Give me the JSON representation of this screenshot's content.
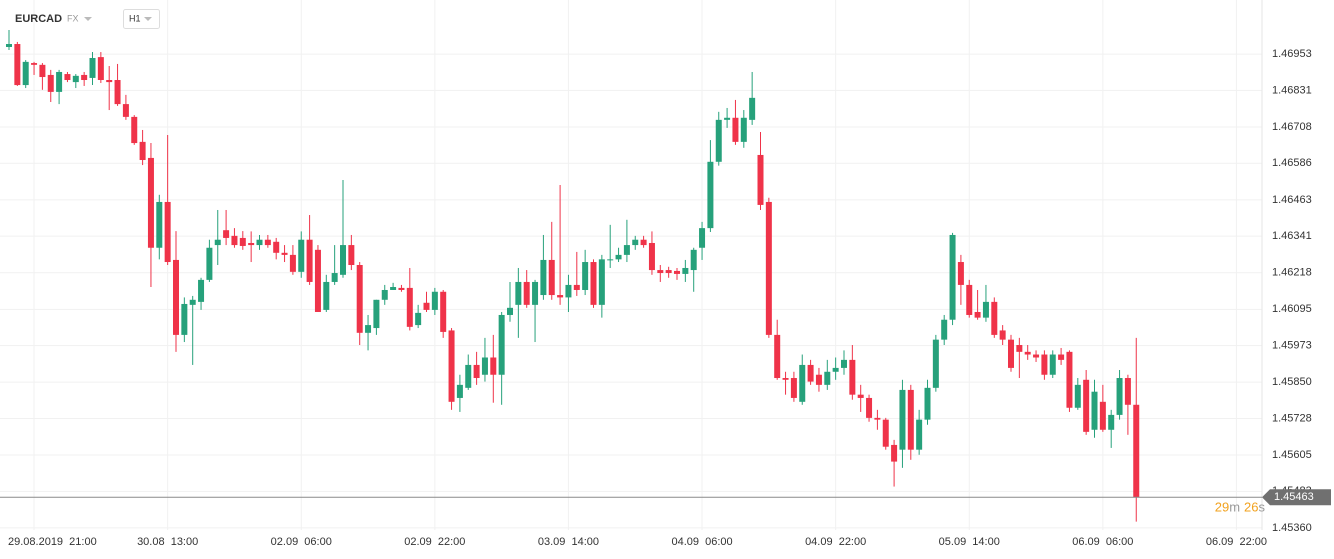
{
  "chart_data": {
    "type": "candlestick",
    "symbol": "EURCAD",
    "market": "FX",
    "timeframe": "H1",
    "up_color": "#26a17b",
    "down_color": "#ef3349",
    "grid": true,
    "categories": [
      null,
      null,
      null,
      "29.08.2019  21:00",
      null,
      null,
      null,
      null,
      null,
      null,
      null,
      null,
      null,
      null,
      null,
      null,
      null,
      null,
      null,
      "30.08  13:00",
      null,
      null,
      null,
      null,
      null,
      null,
      null,
      null,
      null,
      null,
      null,
      null,
      null,
      null,
      null,
      "02.09  06:00",
      null,
      null,
      null,
      null,
      null,
      null,
      null,
      null,
      null,
      null,
      null,
      null,
      null,
      null,
      null,
      "02.09  22:00",
      null,
      null,
      null,
      null,
      null,
      null,
      null,
      null,
      null,
      null,
      null,
      null,
      null,
      null,
      null,
      "03.09  14:00",
      null,
      null,
      null,
      null,
      null,
      null,
      null,
      null,
      null,
      null,
      null,
      null,
      null,
      null,
      null,
      "04.09  06:00",
      null,
      null,
      null,
      null,
      null,
      null,
      null,
      null,
      null,
      null,
      null,
      null,
      null,
      null,
      null,
      "04.09  22:00",
      null,
      null,
      null,
      null,
      null,
      null,
      null,
      null,
      null,
      null,
      null,
      null,
      null,
      null,
      null,
      "05.09  14:00",
      null,
      null,
      null,
      null,
      null,
      null,
      null,
      null,
      null,
      null,
      null,
      null,
      null,
      null,
      null,
      "06.09  06:00",
      null,
      null,
      null,
      null,
      null,
      null,
      null,
      null,
      null,
      null,
      null,
      null,
      null,
      null,
      null,
      "06.09  22:00"
    ],
    "open": [
      1.46977,
      1.46987,
      1.46849,
      1.46923,
      1.46917,
      1.46883,
      1.46826,
      1.46886,
      1.46859,
      1.46883,
      1.46873,
      1.46943,
      1.46866,
      1.46866,
      1.46785,
      1.46742,
      1.46658,
      1.46604,
      1.46302,
      1.46456,
      1.46261,
      1.46009,
      1.4611,
      1.4612,
      1.46194,
      1.46311,
      1.46361,
      1.46342,
      1.46335,
      1.46318,
      1.46311,
      1.46329,
      1.46322,
      1.46285,
      1.46278,
      1.46221,
      1.46329,
      1.46295,
      1.46093,
      1.46187,
      1.46211,
      1.46311,
      1.46244,
      1.46016,
      1.46032,
      1.46127,
      1.4616,
      1.46167,
      1.46167,
      1.46042,
      1.46117,
      1.46093,
      1.46154,
      1.46024,
      1.45797,
      1.45831,
      1.45908,
      1.45875,
      1.45933,
      1.45875,
      1.46076,
      1.4611,
      1.46187,
      1.4611,
      1.46143,
      1.46261,
      1.46143,
      1.46135,
      1.46177,
      1.4616,
      1.46254,
      1.4611,
      1.46261,
      1.46263,
      1.46278,
      1.46311,
      1.46329,
      1.46318,
      1.46227,
      1.46227,
      1.46224,
      1.46214,
      1.46227,
      1.46302,
      1.46368,
      1.46591,
      1.46732,
      1.46739,
      1.46658,
      1.46732,
      1.46614,
      1.46456,
      1.46009,
      1.45864,
      1.45864,
      1.45784,
      1.45908,
      1.45875,
      1.45841,
      1.45885,
      1.45898,
      1.45925,
      1.45808,
      1.45797,
      1.4573,
      1.45724,
      1.45639,
      1.45623,
      1.45824,
      1.45623,
      1.45724,
      1.45831,
      1.45993,
      1.4606,
      1.46254,
      1.46177,
      1.46086,
      1.46067,
      1.4612,
      1.46024,
      1.45993,
      1.45975,
      1.45952,
      1.45943,
      1.45943,
      1.45875,
      1.45943,
      1.45952,
      1.45764,
      1.45858,
      1.4569,
      1.45784,
      1.4569,
      1.4574,
      1.45864,
      1.45774,
      null,
      null,
      null,
      null,
      null,
      null,
      null,
      null,
      null,
      null,
      null,
      null
    ],
    "high": [
      1.47034,
      1.46994,
      1.46933,
      1.46927,
      1.46923,
      1.469,
      1.469,
      1.46893,
      1.46886,
      1.46893,
      1.4696,
      1.4696,
      1.46913,
      1.4692,
      1.46816,
      1.46748,
      1.46698,
      1.46654,
      1.4648,
      1.46681,
      1.46358,
      1.46135,
      1.4614,
      1.46201,
      1.46329,
      1.46429,
      1.46429,
      1.46368,
      1.46358,
      1.46357,
      1.46345,
      1.46345,
      1.46335,
      1.46311,
      1.46311,
      1.46357,
      1.46412,
      1.46311,
      1.46211,
      1.46311,
      1.4653,
      1.46345,
      1.46254,
      1.46076,
      1.46127,
      1.46177,
      1.46184,
      1.46177,
      1.46234,
      1.4611,
      1.46154,
      1.46167,
      1.4616,
      1.46032,
      1.45875,
      1.45943,
      1.45952,
      1.45999,
      1.46009,
      1.46086,
      1.46187,
      1.46234,
      1.46227,
      1.46194,
      1.46345,
      1.46389,
      1.46513,
      1.46211,
      1.46288,
      1.46295,
      1.46263,
      1.46278,
      1.46379,
      1.46302,
      1.46396,
      1.46342,
      1.46342,
      1.46357,
      1.46244,
      1.46238,
      1.46234,
      1.46261,
      1.46302,
      1.46389,
      1.46664,
      1.46759,
      1.46772,
      1.46799,
      1.46765,
      1.46893,
      1.46691,
      1.4647,
      1.4606,
      1.45885,
      1.45885,
      1.45943,
      1.45925,
      1.45898,
      1.45925,
      1.45933,
      1.45957,
      1.45975,
      1.45841,
      1.45808,
      1.45757,
      1.4573,
      1.45656,
      1.45858,
      1.45841,
      1.45757,
      1.45858,
      1.46009,
      1.46076,
      1.46352,
      1.46278,
      1.46194,
      1.4616,
      1.46177,
      1.46135,
      1.46042,
      1.46009,
      1.45999,
      1.45975,
      1.45957,
      1.45957,
      1.45957,
      1.45965,
      1.45957,
      1.45864,
      1.45891,
      1.45858,
      1.45841,
      1.45757,
      1.45891,
      1.45875,
      1.45999,
      null,
      null,
      null,
      null,
      null,
      null,
      null,
      null,
      null,
      null,
      null,
      null
    ],
    "low": [
      1.46967,
      1.46846,
      1.46839,
      1.46883,
      1.46833,
      1.46792,
      1.46785,
      1.46859,
      1.46839,
      1.46846,
      1.46849,
      1.46856,
      1.46765,
      1.46779,
      1.46732,
      1.46648,
      1.4658,
      1.4617,
      1.46263,
      1.46244,
      1.45952,
      1.45985,
      1.45908,
      1.46093,
      1.46187,
      1.46244,
      1.46311,
      1.46302,
      1.46295,
      1.46254,
      1.46295,
      1.46302,
      1.46263,
      1.46254,
      1.46211,
      1.46201,
      1.46177,
      1.46086,
      1.46086,
      1.46177,
      1.46201,
      1.46227,
      1.45975,
      1.45957,
      1.46009,
      1.4611,
      1.4616,
      1.46154,
      1.46024,
      1.46032,
      1.46086,
      1.46076,
      1.45999,
      1.45757,
      1.4575,
      1.45824,
      1.45841,
      1.45852,
      1.45781,
      1.45774,
      1.46053,
      1.45999,
      1.461,
      1.45985,
      1.46127,
      1.46127,
      1.4611,
      1.46086,
      1.4614,
      1.46143,
      1.461,
      1.46067,
      1.46234,
      1.46254,
      1.46254,
      1.46295,
      1.46302,
      1.46211,
      1.46187,
      1.46201,
      1.46194,
      1.46187,
      1.46154,
      1.46261,
      1.46355,
      1.46578,
      1.46705,
      1.46648,
      1.46638,
      1.46715,
      1.46429,
      1.45999,
      1.45858,
      1.45808,
      1.45784,
      1.45774,
      1.45841,
      1.45818,
      1.45824,
      1.45858,
      1.45875,
      1.45791,
      1.4575,
      1.45717,
      1.4569,
      1.45623,
      1.45499,
      1.45562,
      1.45589,
      1.45606,
      1.45707,
      1.45818,
      1.45975,
      1.46042,
      1.4611,
      1.46067,
      1.4606,
      1.46053,
      1.45999,
      1.45975,
      1.45885,
      1.45864,
      1.45925,
      1.45918,
      1.45858,
      1.45864,
      1.45908,
      1.4575,
      1.45757,
      1.45673,
      1.45663,
      1.45683,
      1.45629,
      1.45724,
      1.45673,
      1.45381,
      null,
      null,
      null,
      null,
      null,
      null,
      null,
      null,
      null,
      null,
      null,
      null
    ],
    "close": [
      1.46987,
      1.46849,
      1.46927,
      1.46917,
      1.46876,
      1.46826,
      1.46893,
      1.46866,
      1.4688,
      1.46866,
      1.4694,
      1.46866,
      1.46859,
      1.46785,
      1.46742,
      1.46654,
      1.46597,
      1.46302,
      1.46456,
      1.46254,
      1.46009,
      1.46113,
      1.46127,
      1.46194,
      1.46302,
      1.46329,
      1.46335,
      1.46311,
      1.46308,
      1.46311,
      1.46329,
      1.46311,
      1.46285,
      1.46278,
      1.46221,
      1.46329,
      1.46187,
      1.46086,
      1.46187,
      1.46217,
      1.46311,
      1.46244,
      1.46016,
      1.46042,
      1.46127,
      1.4616,
      1.4617,
      1.4616,
      1.46036,
      1.46083,
      1.46093,
      1.46154,
      1.46019,
      1.45784,
      1.45841,
      1.45908,
      1.45864,
      1.45933,
      1.45875,
      1.46076,
      1.461,
      1.46187,
      1.4611,
      1.46187,
      1.46261,
      1.46143,
      1.46135,
      1.46177,
      1.4616,
      1.46254,
      1.4611,
      1.46263,
      1.46263,
      1.46278,
      1.46311,
      1.46329,
      1.46311,
      1.46227,
      1.46217,
      1.46217,
      1.46214,
      1.46234,
      1.46295,
      1.46368,
      1.46591,
      1.46732,
      1.46739,
      1.46658,
      1.46739,
      1.46806,
      1.46446,
      1.46009,
      1.45864,
      1.45858,
      1.45797,
      1.45908,
      1.45852,
      1.45841,
      1.45885,
      1.45898,
      1.45925,
      1.45808,
      1.45797,
      1.4573,
      1.45724,
      1.45633,
      1.45583,
      1.45824,
      1.45623,
      1.45724,
      1.45831,
      1.45993,
      1.4606,
      1.46345,
      1.46177,
      1.46076,
      1.46067,
      1.4612,
      1.46009,
      1.45993,
      1.45898,
      1.45952,
      1.45943,
      1.45933,
      1.45875,
      1.45943,
      1.45925,
      1.45764,
      1.45841,
      1.45683,
      1.45818,
      1.4569,
      1.4574,
      1.45864,
      1.45774,
      1.45463,
      null,
      null,
      null,
      null,
      null,
      null,
      null,
      null,
      null,
      null,
      null,
      null
    ],
    "last_price": 1.45463,
    "countdown": {
      "minutes": "29",
      "minutes_unit": "m",
      "seconds": "26",
      "seconds_unit": "s"
    },
    "ylim": [
      1.45353,
      1.47135
    ],
    "yticks": [
      1.46953,
      1.46831,
      1.46708,
      1.46586,
      1.46463,
      1.46341,
      1.46218,
      1.46095,
      1.45973,
      {
        "value": 1.4585,
        "label": "1.45850"
      },
      1.45728,
      1.45605,
      1.45483,
      {
        "value": 1.4536,
        "label": "1.45360"
      }
    ]
  }
}
